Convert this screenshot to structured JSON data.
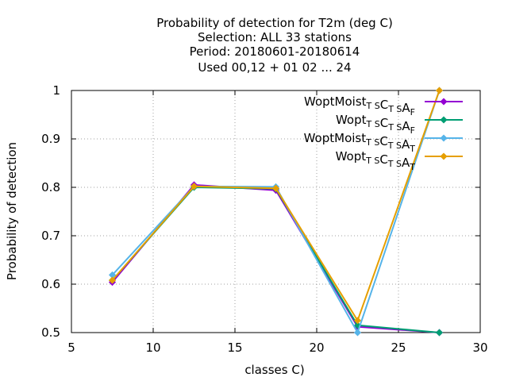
{
  "chart_data": {
    "type": "line",
    "title_lines": [
      "Probability of detection  for T2m (deg C)",
      "Selection: ALL     33 stations",
      "Period: 20180601-20180614",
      "Used  00,12  + 01 02 ... 24"
    ],
    "xlabel": "classes C)",
    "ylabel": "Probability of detection",
    "xlim": [
      5,
      30
    ],
    "ylim": [
      0.5,
      1.0
    ],
    "xticks": [
      5,
      10,
      15,
      20,
      25,
      30
    ],
    "yticks": [
      0.5,
      0.6,
      0.7,
      0.8,
      0.9,
      1.0
    ],
    "xtick_labels": [
      "5",
      "10",
      "15",
      "20",
      "25",
      "30"
    ],
    "ytick_labels": [
      "0.5",
      "0.6",
      "0.7",
      "0.8",
      "0.9",
      "1"
    ],
    "grid": true,
    "legend_position": "top-right",
    "series": [
      {
        "name_base": "WoptMoist",
        "name_sub": "T S",
        "name_mid": "C",
        "name_sub2": "T S",
        "name_end": "A",
        "name_sub3": "F",
        "color": "#9400d3",
        "x": [
          7.5,
          12.5,
          17.5,
          22.5,
          27.5
        ],
        "y": [
          0.604,
          0.805,
          0.794,
          0.512,
          0.5
        ]
      },
      {
        "name_base": "Wopt",
        "name_sub": "T S",
        "name_mid": "C",
        "name_sub2": "T S",
        "name_end": "A",
        "name_sub3": "F",
        "color": "#009e73",
        "x": [
          7.5,
          12.5,
          17.5,
          22.5,
          27.5
        ],
        "y": [
          0.608,
          0.8,
          0.797,
          0.515,
          0.5
        ]
      },
      {
        "name_base": "WoptMoist",
        "name_sub": "T S",
        "name_mid": "C",
        "name_sub2": "T S",
        "name_end": "A",
        "name_sub3": "T",
        "color": "#56b4e9",
        "x": [
          7.5,
          12.5,
          17.5,
          22.5,
          27.5
        ],
        "y": [
          0.619,
          0.802,
          0.801,
          0.5,
          1.0
        ]
      },
      {
        "name_base": "Wopt",
        "name_sub": "T S",
        "name_mid": "C",
        "name_sub2": "T S",
        "name_end": "A",
        "name_sub3": "T",
        "color": "#e69f00",
        "x": [
          7.5,
          12.5,
          17.5,
          22.5,
          27.5
        ],
        "y": [
          0.608,
          0.802,
          0.798,
          0.525,
          1.0
        ]
      }
    ]
  }
}
